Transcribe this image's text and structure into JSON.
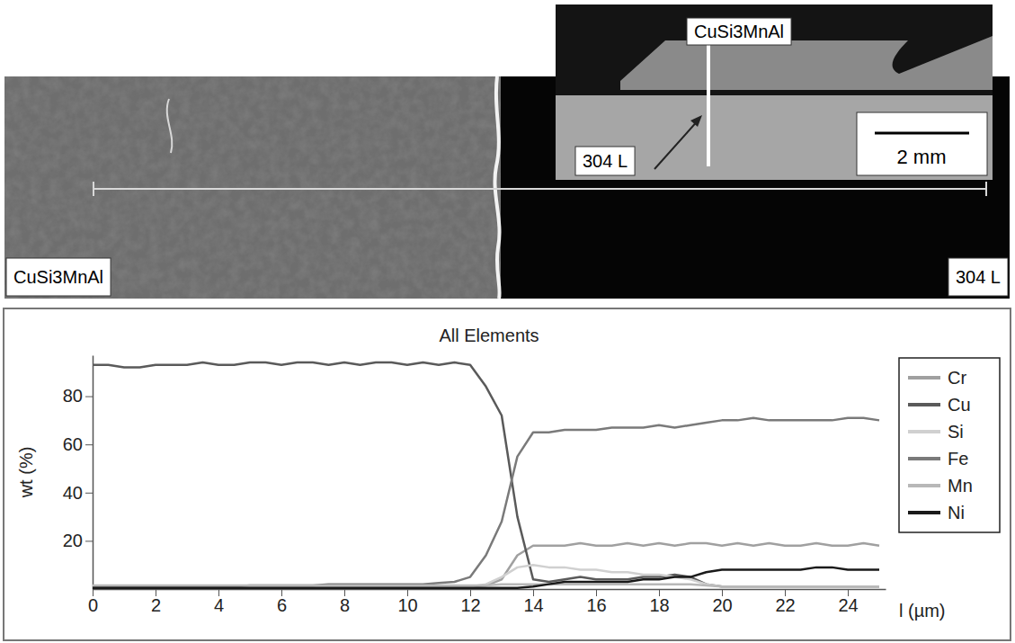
{
  "micrograph": {
    "left_label": "CuSi3MnAl",
    "right_label": "304 L",
    "inset": {
      "top_label": "CuSi3MnAl",
      "bottom_label": "304 L",
      "scale_bar": "2 mm"
    }
  },
  "chart_data": {
    "type": "line",
    "title": "All Elements",
    "x_label": "l (µm)",
    "y_label": "wt (%)",
    "xlim": [
      0,
      25.2
    ],
    "xticks": [
      0,
      2,
      4,
      6,
      8,
      10,
      12,
      14,
      16,
      18,
      20,
      22,
      24
    ],
    "ylim": [
      0,
      97
    ],
    "yticks": [
      20,
      40,
      60,
      80
    ],
    "grid": false,
    "legend": "right",
    "x": [
      0,
      0.5,
      1,
      1.5,
      2,
      2.5,
      3,
      3.5,
      4,
      4.5,
      5,
      5.5,
      6,
      6.5,
      7,
      7.5,
      8,
      8.5,
      9,
      9.5,
      10,
      10.5,
      11,
      11.5,
      12,
      12.5,
      13,
      13.5,
      14,
      14.5,
      15,
      15.5,
      16,
      16.5,
      17,
      17.5,
      18,
      18.5,
      19,
      19.5,
      20,
      20.5,
      21,
      21.5,
      22,
      22.5,
      23,
      23.5,
      24,
      24.5,
      25
    ],
    "series": [
      {
        "name": "Cr",
        "color": "#a0a0a0",
        "values": [
          0.5,
          0.5,
          0.5,
          0.5,
          0.5,
          0.5,
          0.5,
          0.5,
          0.5,
          0.5,
          0.5,
          0.5,
          0.5,
          0.5,
          0.5,
          0.5,
          0.5,
          0.5,
          0.5,
          0.5,
          0.5,
          0.5,
          0.5,
          0.5,
          1,
          1.5,
          4,
          14,
          18,
          18,
          18,
          19,
          18,
          18,
          19,
          18,
          19,
          18,
          19,
          19,
          18,
          19,
          18,
          19,
          18,
          18,
          19,
          18,
          18,
          19,
          18
        ]
      },
      {
        "name": "Cu",
        "color": "#5a5a5a",
        "values": [
          93,
          93,
          92,
          92,
          93,
          93,
          93,
          94,
          93,
          93,
          94,
          94,
          93,
          94,
          94,
          93,
          94,
          93,
          94,
          94,
          93,
          94,
          93,
          94,
          93,
          84,
          72,
          30,
          4,
          3,
          4,
          5,
          4,
          4,
          4,
          5,
          5,
          6,
          5,
          2,
          1,
          1,
          1,
          1,
          1,
          1,
          1,
          1,
          1,
          1,
          1
        ]
      },
      {
        "name": "Si",
        "color": "#d0d0d0",
        "values": [
          1,
          1,
          1,
          1,
          1,
          1,
          1,
          1,
          1,
          1,
          1,
          1,
          1,
          1,
          1,
          1,
          1,
          1,
          1,
          1,
          1,
          1,
          1,
          1,
          1,
          2,
          5,
          9,
          10,
          9,
          9,
          8,
          8,
          7,
          7,
          6,
          6,
          5,
          4,
          2,
          1,
          1,
          1,
          1,
          1,
          1,
          1,
          1,
          1,
          1,
          1
        ]
      },
      {
        "name": "Fe",
        "color": "#7a7a7a",
        "values": [
          1,
          1,
          1,
          1,
          1,
          1,
          1,
          1,
          1,
          1,
          1.5,
          1.5,
          1.5,
          1.5,
          1.5,
          2,
          2,
          2,
          2,
          2,
          2,
          2,
          2.5,
          3,
          5,
          14,
          28,
          55,
          65,
          65,
          66,
          66,
          66,
          67,
          67,
          67,
          68,
          67,
          68,
          69,
          70,
          70,
          71,
          70,
          70,
          70,
          70,
          70,
          71,
          71,
          70
        ]
      },
      {
        "name": "Mn",
        "color": "#b8b8b8",
        "values": [
          1.5,
          1.5,
          1.5,
          1.5,
          1.5,
          1.5,
          1.5,
          1.5,
          1.5,
          1.5,
          1.5,
          1.5,
          1.5,
          1.5,
          1.5,
          1.5,
          1.5,
          1.5,
          1.5,
          1.5,
          1.5,
          1.5,
          1.5,
          1.5,
          1.5,
          1.5,
          2,
          2,
          2,
          2,
          2,
          2,
          2,
          2,
          2,
          2,
          2,
          2,
          2,
          1.5,
          1,
          1,
          1,
          1,
          1,
          1,
          1,
          1,
          1,
          1,
          1
        ]
      },
      {
        "name": "Ni",
        "color": "#1a1a1a",
        "values": [
          0.5,
          0.5,
          0.5,
          0.5,
          0.5,
          0.5,
          0.5,
          0.5,
          0.5,
          0.5,
          0.5,
          0.5,
          0.5,
          0.5,
          0.5,
          0.5,
          0.5,
          0.5,
          0.5,
          0.5,
          0.5,
          0.5,
          0.5,
          0.5,
          0.5,
          0.5,
          0.5,
          0.5,
          1,
          2,
          3,
          3,
          3,
          3,
          3,
          4,
          4,
          5,
          5,
          7,
          8,
          8,
          8,
          8,
          8,
          8,
          9,
          9,
          8,
          8,
          8
        ]
      }
    ]
  }
}
